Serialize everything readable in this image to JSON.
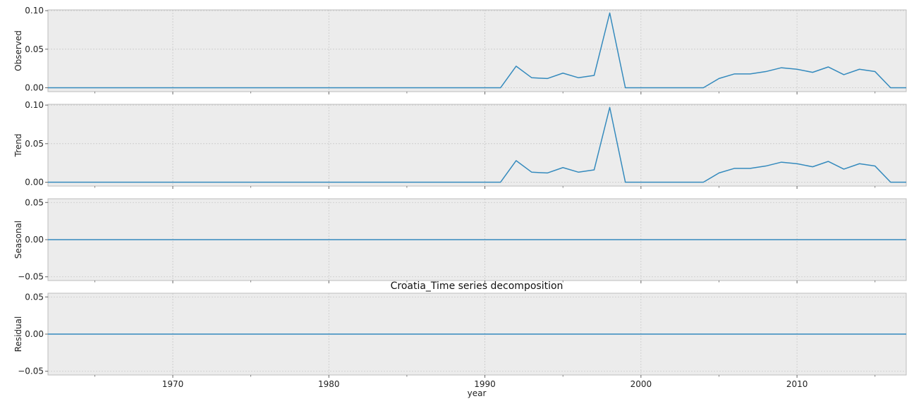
{
  "title": "Croatia_Time series decomposition",
  "xlabel": "year",
  "colors": {
    "line": "#348abd",
    "panel_bg": "#ececec",
    "grid": "#c8c8c8",
    "spine": "#bcbcbc"
  },
  "chart_data": {
    "type": "line",
    "title": "Croatia_Time series decomposition",
    "xlabel": "year",
    "grid": true,
    "shared_x": true,
    "x_range": [
      1962,
      2017
    ],
    "x_ticks": [
      1970,
      1980,
      1990,
      2000,
      2010
    ],
    "x_tick_labels": [
      "1970",
      "1980",
      "1990",
      "2000",
      "2010"
    ],
    "x": [
      1962,
      1963,
      1964,
      1965,
      1966,
      1967,
      1968,
      1969,
      1970,
      1971,
      1972,
      1973,
      1974,
      1975,
      1976,
      1977,
      1978,
      1979,
      1980,
      1981,
      1982,
      1983,
      1984,
      1985,
      1986,
      1987,
      1988,
      1989,
      1990,
      1991,
      1992,
      1993,
      1994,
      1995,
      1996,
      1997,
      1998,
      1999,
      2000,
      2001,
      2002,
      2003,
      2004,
      2005,
      2006,
      2007,
      2008,
      2009,
      2010,
      2011,
      2012,
      2013,
      2014,
      2015,
      2016,
      2017
    ],
    "panels": [
      {
        "ylabel": "Observed",
        "ylim": [
          -0.005,
          0.101
        ],
        "y_ticks": [
          0.0,
          0.05,
          0.1
        ],
        "y_tick_labels": [
          "0.00",
          "0.05",
          "0.10"
        ],
        "values": [
          0,
          0,
          0,
          0,
          0,
          0,
          0,
          0,
          0,
          0,
          0,
          0,
          0,
          0,
          0,
          0,
          0,
          0,
          0,
          0,
          0,
          0,
          0,
          0,
          0,
          0,
          0,
          0,
          0,
          0,
          0.028,
          0.013,
          0.012,
          0.019,
          0.013,
          0.016,
          0.097,
          0,
          0,
          0,
          0,
          0,
          0,
          0.012,
          0.018,
          0.018,
          0.021,
          0.026,
          0.024,
          0.02,
          0.027,
          0.017,
          0.024,
          0.021,
          0,
          0
        ]
      },
      {
        "ylabel": "Trend",
        "ylim": [
          -0.005,
          0.101
        ],
        "y_ticks": [
          0.0,
          0.05,
          0.1
        ],
        "y_tick_labels": [
          "0.00",
          "0.05",
          "0.10"
        ],
        "values": [
          0,
          0,
          0,
          0,
          0,
          0,
          0,
          0,
          0,
          0,
          0,
          0,
          0,
          0,
          0,
          0,
          0,
          0,
          0,
          0,
          0,
          0,
          0,
          0,
          0,
          0,
          0,
          0,
          0,
          0,
          0.028,
          0.013,
          0.012,
          0.019,
          0.013,
          0.016,
          0.097,
          0,
          0,
          0,
          0,
          0,
          0,
          0.012,
          0.018,
          0.018,
          0.021,
          0.026,
          0.024,
          0.02,
          0.027,
          0.017,
          0.024,
          0.021,
          0,
          0
        ]
      },
      {
        "ylabel": "Seasonal",
        "ylim": [
          -0.055,
          0.055
        ],
        "y_ticks": [
          -0.05,
          0.0,
          0.05
        ],
        "y_tick_labels": [
          "−0.05",
          "0.00",
          "0.05"
        ],
        "values": [
          0,
          0,
          0,
          0,
          0,
          0,
          0,
          0,
          0,
          0,
          0,
          0,
          0,
          0,
          0,
          0,
          0,
          0,
          0,
          0,
          0,
          0,
          0,
          0,
          0,
          0,
          0,
          0,
          0,
          0,
          0,
          0,
          0,
          0,
          0,
          0,
          0,
          0,
          0,
          0,
          0,
          0,
          0,
          0,
          0,
          0,
          0,
          0,
          0,
          0,
          0,
          0,
          0,
          0,
          0,
          0
        ]
      },
      {
        "ylabel": "Residual",
        "ylim": [
          -0.055,
          0.055
        ],
        "y_ticks": [
          -0.05,
          0.0,
          0.05
        ],
        "y_tick_labels": [
          "−0.05",
          "0.00",
          "0.05"
        ],
        "values": [
          0,
          0,
          0,
          0,
          0,
          0,
          0,
          0,
          0,
          0,
          0,
          0,
          0,
          0,
          0,
          0,
          0,
          0,
          0,
          0,
          0,
          0,
          0,
          0,
          0,
          0,
          0,
          0,
          0,
          0,
          0,
          0,
          0,
          0,
          0,
          0,
          0,
          0,
          0,
          0,
          0,
          0,
          0,
          0,
          0,
          0,
          0,
          0,
          0,
          0,
          0,
          0,
          0,
          0,
          0,
          0
        ]
      }
    ]
  }
}
